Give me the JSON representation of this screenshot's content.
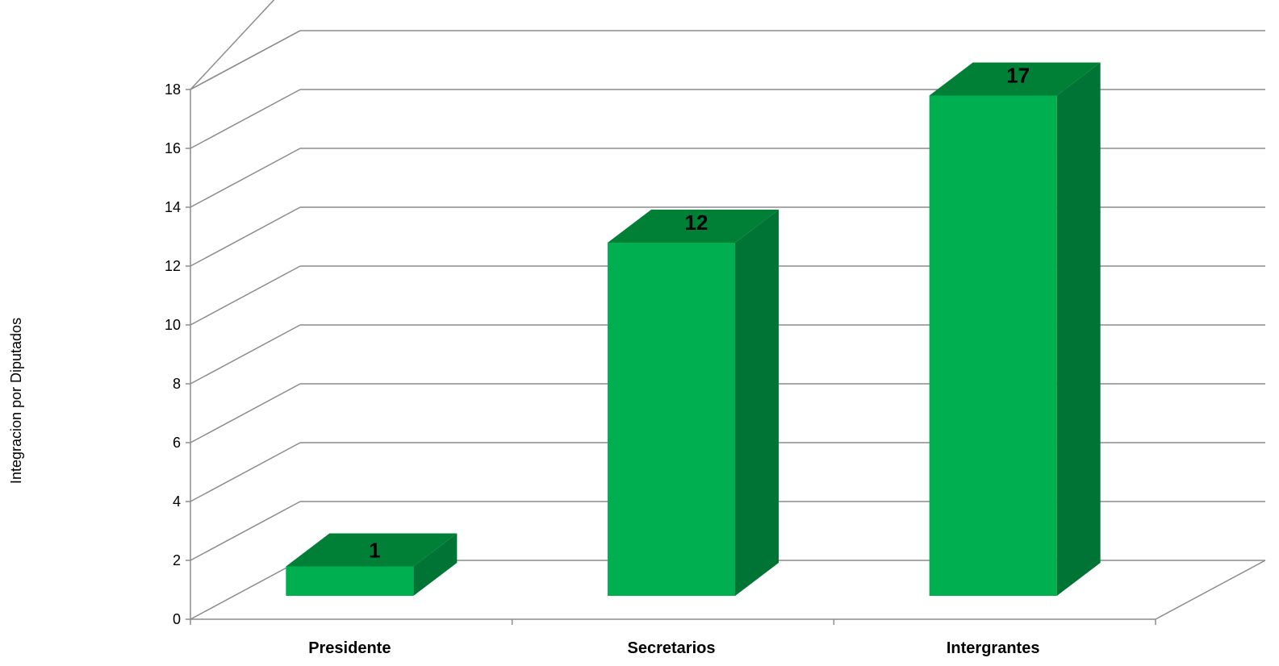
{
  "chart_data": {
    "type": "bar",
    "style": "3d-column",
    "title": "",
    "xlabel": "",
    "ylabel": "Integracion por Diputados",
    "categories": [
      "Presidente",
      "Secretarios",
      "Intergrantes"
    ],
    "values": [
      1,
      12,
      17
    ],
    "data_labels": [
      "1",
      "12",
      "17"
    ],
    "ylim": [
      0,
      18
    ],
    "yticks": [
      0,
      2,
      4,
      6,
      8,
      10,
      12,
      14,
      16,
      18
    ],
    "grid": true,
    "legend": "none",
    "colors": {
      "bar_front": "#00b050",
      "bar_top": "#008037",
      "bar_side": "#007435",
      "grid": "#8c8c8c"
    }
  }
}
